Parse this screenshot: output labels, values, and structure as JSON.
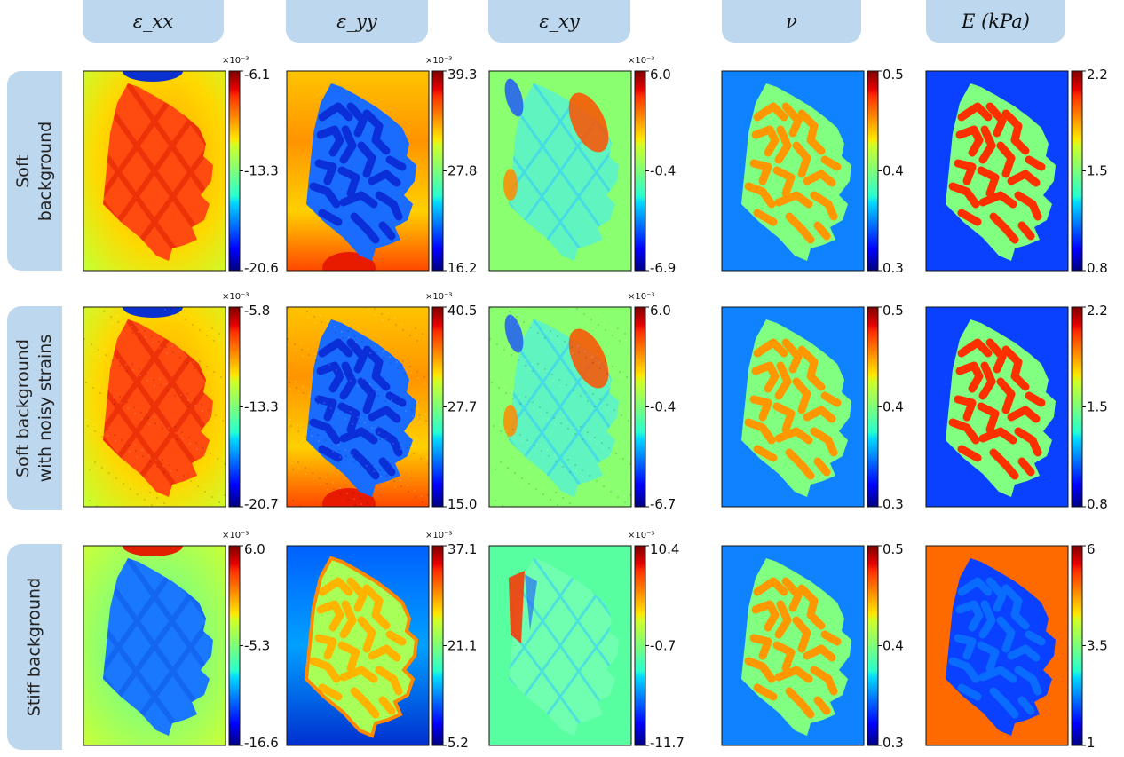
{
  "column_headers": [
    "ε_xx",
    "ε_yy",
    "ε_xy",
    "ν",
    "E (kPa)"
  ],
  "row_headers": [
    "Soft\nbackground",
    "Soft background\nwith noisy strains",
    "Stiff background"
  ],
  "chart_data": {
    "type": "heatmap",
    "colormap": "jet",
    "panels": [
      {
        "row": 0,
        "col": 0,
        "field": "ε_xx",
        "colorbar_ticks": [
          "-6.1",
          "-13.3",
          "-20.6"
        ],
        "multiplier": "×10⁻³"
      },
      {
        "row": 0,
        "col": 1,
        "field": "ε_yy",
        "colorbar_ticks": [
          "39.3",
          "27.8",
          "16.2"
        ],
        "multiplier": "×10⁻³"
      },
      {
        "row": 0,
        "col": 2,
        "field": "ε_xy",
        "colorbar_ticks": [
          "6.0",
          "-0.4",
          "-6.9"
        ],
        "multiplier": "×10⁻³"
      },
      {
        "row": 0,
        "col": 3,
        "field": "ν",
        "colorbar_ticks": [
          "0.5",
          "0.4",
          "0.3"
        ],
        "multiplier": ""
      },
      {
        "row": 0,
        "col": 4,
        "field": "E (kPa)",
        "colorbar_ticks": [
          "2.2",
          "1.5",
          "0.8"
        ],
        "multiplier": ""
      },
      {
        "row": 1,
        "col": 0,
        "field": "ε_xx",
        "colorbar_ticks": [
          "-5.8",
          "-13.3",
          "-20.7"
        ],
        "multiplier": "×10⁻³"
      },
      {
        "row": 1,
        "col": 1,
        "field": "ε_yy",
        "colorbar_ticks": [
          "40.5",
          "27.7",
          "15.0"
        ],
        "multiplier": "×10⁻³"
      },
      {
        "row": 1,
        "col": 2,
        "field": "ε_xy",
        "colorbar_ticks": [
          "6.0",
          "-0.4",
          "-6.7"
        ],
        "multiplier": "×10⁻³"
      },
      {
        "row": 1,
        "col": 3,
        "field": "ν",
        "colorbar_ticks": [
          "0.5",
          "0.4",
          "0.3"
        ],
        "multiplier": ""
      },
      {
        "row": 1,
        "col": 4,
        "field": "E (kPa)",
        "colorbar_ticks": [
          "2.2",
          "1.5",
          "0.8"
        ],
        "multiplier": ""
      },
      {
        "row": 2,
        "col": 0,
        "field": "ε_xx",
        "colorbar_ticks": [
          "6.0",
          "-5.3",
          "-16.6"
        ],
        "multiplier": "×10⁻³"
      },
      {
        "row": 2,
        "col": 1,
        "field": "ε_yy",
        "colorbar_ticks": [
          "37.1",
          "21.1",
          "5.2"
        ],
        "multiplier": "×10⁻³"
      },
      {
        "row": 2,
        "col": 2,
        "field": "ε_xy",
        "colorbar_ticks": [
          "10.4",
          "-0.7",
          "-11.7"
        ],
        "multiplier": "×10⁻³"
      },
      {
        "row": 2,
        "col": 3,
        "field": "ν",
        "colorbar_ticks": [
          "0.5",
          "0.4",
          "0.3"
        ],
        "multiplier": ""
      },
      {
        "row": 2,
        "col": 4,
        "field": "E (kPa)",
        "colorbar_ticks": [
          "6",
          "3.5",
          "1"
        ],
        "multiplier": ""
      }
    ]
  }
}
